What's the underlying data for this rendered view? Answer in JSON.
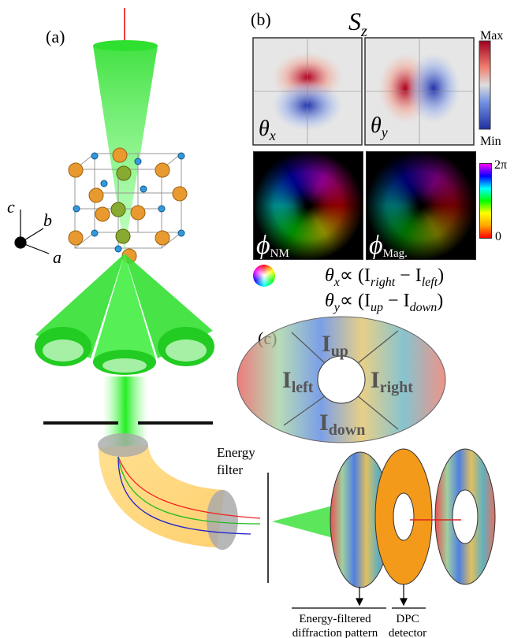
{
  "panel_labels": [
    "(a)",
    "(b)",
    "(c)"
  ],
  "crystal_axes": [
    "c",
    "b",
    "a"
  ],
  "spin_map": {
    "title": {
      "base": "S",
      "sub": "z"
    },
    "scale": [
      "Max",
      "Min"
    ],
    "panels": [
      {
        "base": "θ",
        "sub": "x"
      },
      {
        "base": "θ",
        "sub": "y"
      }
    ]
  },
  "phase_map": {
    "scale": [
      "2π",
      "0"
    ],
    "panels": [
      {
        "base": "ϕ",
        "sub": "NM"
      },
      {
        "base": "ϕ",
        "sub": "Mag."
      }
    ]
  },
  "equations": [
    [
      {
        "text": "θ"
      },
      {
        "text": "x",
        "sub": true
      },
      {
        "text": "∝ (I"
      },
      {
        "text": "right",
        "sub": true
      },
      {
        "text": " − I"
      },
      {
        "text": "left",
        "sub": true
      },
      {
        "text": ")"
      }
    ],
    [
      {
        "text": "θ"
      },
      {
        "text": "y",
        "sub": true
      },
      {
        "text": "∝ (I"
      },
      {
        "text": "up",
        "sub": true
      },
      {
        "text": " − I"
      },
      {
        "text": "down",
        "sub": true
      },
      {
        "text": ")"
      }
    ]
  ],
  "detector_segments": [
    {
      "base": "I",
      "sub": "up"
    },
    {
      "base": "I",
      "sub": "left"
    },
    {
      "base": "I",
      "sub": "right"
    },
    {
      "base": "I",
      "sub": "down"
    }
  ],
  "energy_filter_label": [
    "Energy",
    "filter"
  ],
  "bottom_labels": [
    [
      "Energy-filtered",
      "diffraction pattern"
    ],
    [
      "DPC",
      "detector"
    ]
  ]
}
